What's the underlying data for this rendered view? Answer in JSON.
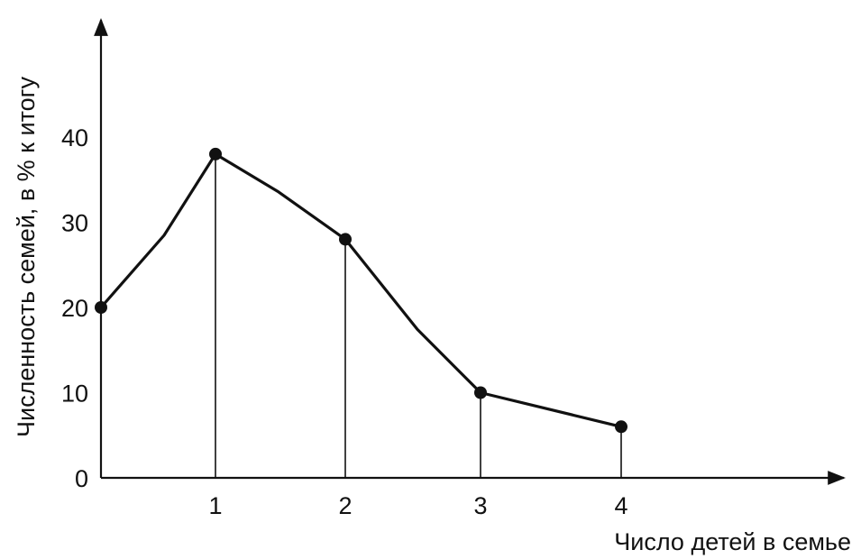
{
  "chart_data": {
    "type": "line",
    "title": "",
    "xlabel": "Число детей в семье",
    "ylabel": "Численность семей, в % к итогу",
    "x": [
      0,
      1,
      2,
      3,
      4
    ],
    "x_tick_labels": [
      "1",
      "2",
      "3",
      "4"
    ],
    "y_tick_labels": [
      "0",
      "10",
      "20",
      "30",
      "40"
    ],
    "series": [
      {
        "values": [
          20,
          38,
          28,
          10,
          6
        ]
      }
    ],
    "xlim": [
      0,
      5.5
    ],
    "ylim": [
      0,
      50
    ],
    "grid": false,
    "line_color": "#111111"
  }
}
